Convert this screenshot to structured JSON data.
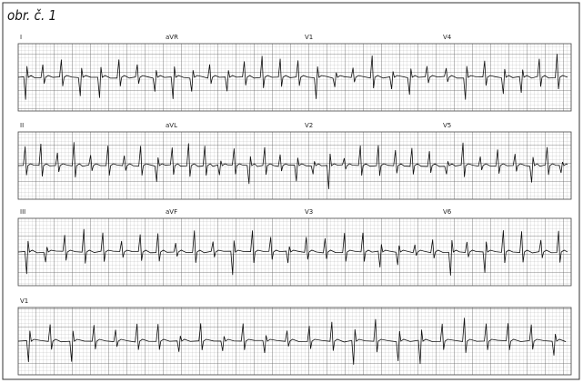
{
  "caption": "obr. č. 1",
  "strips": [
    {
      "leads": [
        "I",
        "aVR",
        "V1",
        "V4"
      ]
    },
    {
      "leads": [
        "II",
        "aVL",
        "V2",
        "V5"
      ]
    },
    {
      "leads": [
        "III",
        "aVF",
        "V3",
        "V6"
      ]
    },
    {
      "leads": [
        "V1"
      ]
    }
  ]
}
